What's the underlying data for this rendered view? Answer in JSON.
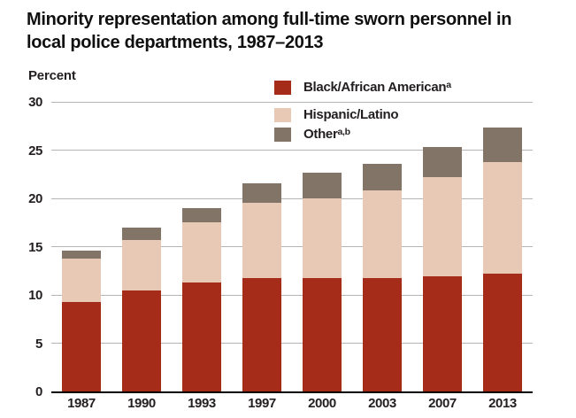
{
  "title": {
    "line1": "Minority representation among full-time sworn personnel in",
    "line2": "local police departments, 1987–2013"
  },
  "chart_data": {
    "type": "bar",
    "stacked": true,
    "title": "Minority representation among full-time sworn personnel in local police departments, 1987–2013",
    "ylabel": "Percent",
    "xlabel": "",
    "ylim": [
      0,
      30
    ],
    "y_ticks": [
      0,
      5,
      10,
      15,
      20,
      25,
      30
    ],
    "grid": true,
    "legend_position": "top-center-overlay",
    "categories": [
      "1987",
      "1990",
      "1993",
      "1997",
      "2000",
      "2003",
      "2007",
      "2013"
    ],
    "series": [
      {
        "name": "Black/African American",
        "sup": "a",
        "color": "#a42c18",
        "values": [
          9.3,
          10.5,
          11.3,
          11.7,
          11.7,
          11.7,
          11.9,
          12.2
        ]
      },
      {
        "name": "Hispanic/Latino",
        "sup": "",
        "color": "#e7c9b6",
        "values": [
          4.5,
          5.2,
          6.2,
          7.8,
          8.3,
          9.1,
          10.3,
          11.6
        ]
      },
      {
        "name": "Other",
        "sup": "a,b",
        "color": "#837468",
        "values": [
          0.8,
          1.3,
          1.5,
          2.1,
          2.7,
          2.8,
          3.1,
          3.5
        ]
      }
    ]
  },
  "colors": {
    "grid": "#b5b5b5",
    "axis": "#000000",
    "text": "#231f20",
    "title": "#101010",
    "background": "#ffffff"
  }
}
